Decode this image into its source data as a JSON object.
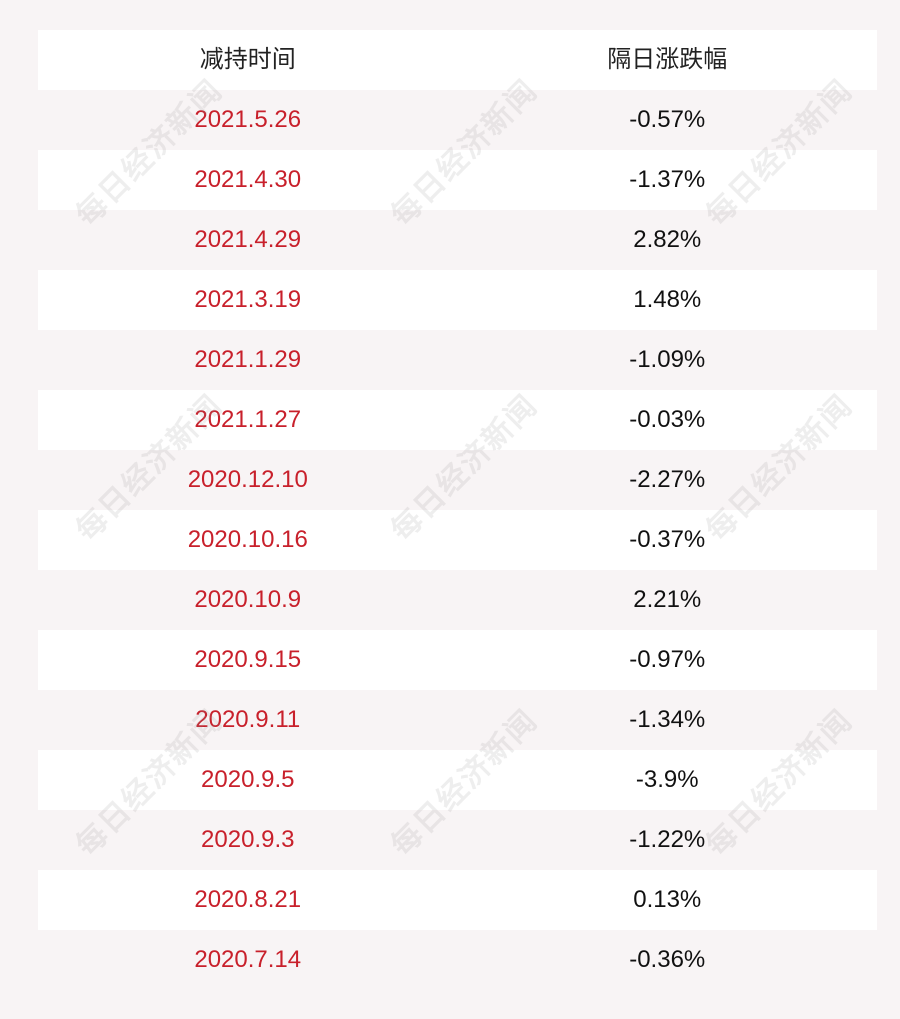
{
  "table": {
    "headers": [
      "减持时间",
      "隔日涨跌幅"
    ],
    "rows": [
      {
        "date": "2021.5.26",
        "change": "-0.57%"
      },
      {
        "date": "2021.4.30",
        "change": "-1.37%"
      },
      {
        "date": "2021.4.29",
        "change": "2.82%"
      },
      {
        "date": "2021.3.19",
        "change": "1.48%"
      },
      {
        "date": "2021.1.29",
        "change": "-1.09%"
      },
      {
        "date": "2021.1.27",
        "change": "-0.03%"
      },
      {
        "date": "2020.12.10",
        "change": "-2.27%"
      },
      {
        "date": "2020.10.16",
        "change": "-0.37%"
      },
      {
        "date": "2020.10.9",
        "change": "2.21%"
      },
      {
        "date": "2020.9.15",
        "change": "-0.97%"
      },
      {
        "date": "2020.9.11",
        "change": "-1.34%"
      },
      {
        "date": "2020.9.5",
        "change": "-3.9%"
      },
      {
        "date": "2020.9.3",
        "change": "-1.22%"
      },
      {
        "date": "2020.8.21",
        "change": "0.13%"
      },
      {
        "date": "2020.7.14",
        "change": "-0.36%"
      }
    ]
  },
  "watermark": {
    "text": "每日经济新闻"
  },
  "colors": {
    "date_text": "#c8202b",
    "change_text": "#111111",
    "background": "#f8f4f5",
    "shaded_row": "#ffffff"
  }
}
